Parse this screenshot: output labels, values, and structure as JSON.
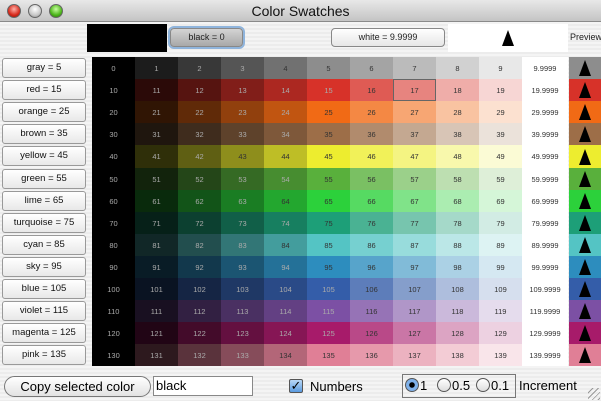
{
  "window": {
    "title": "Color Swatches"
  },
  "top": {
    "black_button": "black = 0",
    "white_button": "white = 9.9999",
    "preview_label": "Preview",
    "black_color": "#000000",
    "white_color": "#ffffff"
  },
  "selected_cell": "17",
  "rows": [
    {
      "label": "gray = 5",
      "rgb": [
        141,
        141,
        141
      ],
      "cells": [
        "0",
        "1",
        "2",
        "3",
        "4",
        "5",
        "6",
        "7",
        "8",
        "9",
        "9.9999"
      ]
    },
    {
      "label": "red = 15",
      "rgb": [
        215,
        50,
        41
      ],
      "cells": [
        "10",
        "11",
        "12",
        "13",
        "14",
        "15",
        "16",
        "17",
        "18",
        "19",
        "19.9999"
      ]
    },
    {
      "label": "orange = 25",
      "rgb": [
        241,
        106,
        21
      ],
      "cells": [
        "20",
        "21",
        "22",
        "23",
        "24",
        "25",
        "26",
        "27",
        "28",
        "29",
        "29.9999"
      ]
    },
    {
      "label": "brown = 35",
      "rgb": [
        157,
        110,
        72
      ],
      "cells": [
        "30",
        "31",
        "32",
        "33",
        "34",
        "35",
        "36",
        "37",
        "38",
        "39",
        "39.9999"
      ]
    },
    {
      "label": "yellow = 45",
      "rgb": [
        237,
        237,
        47
      ],
      "cells": [
        "40",
        "41",
        "42",
        "43",
        "44",
        "45",
        "46",
        "47",
        "48",
        "49",
        "49.9999"
      ]
    },
    {
      "label": "green = 55",
      "rgb": [
        89,
        176,
        60
      ],
      "cells": [
        "50",
        "51",
        "52",
        "53",
        "54",
        "55",
        "56",
        "57",
        "58",
        "59",
        "59.9999"
      ]
    },
    {
      "label": "lime = 65",
      "rgb": [
        44,
        209,
        59
      ],
      "cells": [
        "60",
        "61",
        "62",
        "63",
        "64",
        "65",
        "66",
        "67",
        "68",
        "69",
        "69.9999"
      ]
    },
    {
      "label": "turquoise = 75",
      "rgb": [
        29,
        159,
        120
      ],
      "cells": [
        "70",
        "71",
        "72",
        "73",
        "74",
        "75",
        "76",
        "77",
        "78",
        "79",
        "79.9999"
      ]
    },
    {
      "label": "cyan = 85",
      "rgb": [
        84,
        196,
        196
      ],
      "cells": [
        "80",
        "81",
        "82",
        "83",
        "84",
        "85",
        "86",
        "87",
        "88",
        "89",
        "89.9999"
      ]
    },
    {
      "label": "sky = 95",
      "rgb": [
        45,
        141,
        190
      ],
      "cells": [
        "90",
        "91",
        "92",
        "93",
        "94",
        "95",
        "96",
        "97",
        "98",
        "99",
        "99.9999"
      ]
    },
    {
      "label": "blue = 105",
      "rgb": [
        52,
        93,
        169
      ],
      "cells": [
        "100",
        "101",
        "102",
        "103",
        "104",
        "105",
        "106",
        "107",
        "108",
        "109",
        "109.9999"
      ]
    },
    {
      "label": "violet = 115",
      "rgb": [
        124,
        80,
        164
      ],
      "cells": [
        "110",
        "111",
        "112",
        "113",
        "114",
        "115",
        "116",
        "117",
        "118",
        "119",
        "119.9999"
      ]
    },
    {
      "label": "magenta = 125",
      "rgb": [
        167,
        27,
        106
      ],
      "cells": [
        "120",
        "121",
        "122",
        "123",
        "124",
        "125",
        "126",
        "127",
        "128",
        "129",
        "129.9999"
      ]
    },
    {
      "label": "pink = 135",
      "rgb": [
        224,
        127,
        150
      ],
      "cells": [
        "130",
        "131",
        "132",
        "133",
        "134",
        "135",
        "136",
        "137",
        "138",
        "139",
        "139.9999"
      ]
    }
  ],
  "bottom": {
    "copy_button": "Copy selected color",
    "color_field": "black",
    "numbers_label": "Numbers",
    "numbers_checked": true,
    "increments": [
      {
        "label": "1",
        "selected": true
      },
      {
        "label": "0.5",
        "selected": false
      },
      {
        "label": "0.1",
        "selected": false
      }
    ],
    "increment_label": "Increment"
  }
}
